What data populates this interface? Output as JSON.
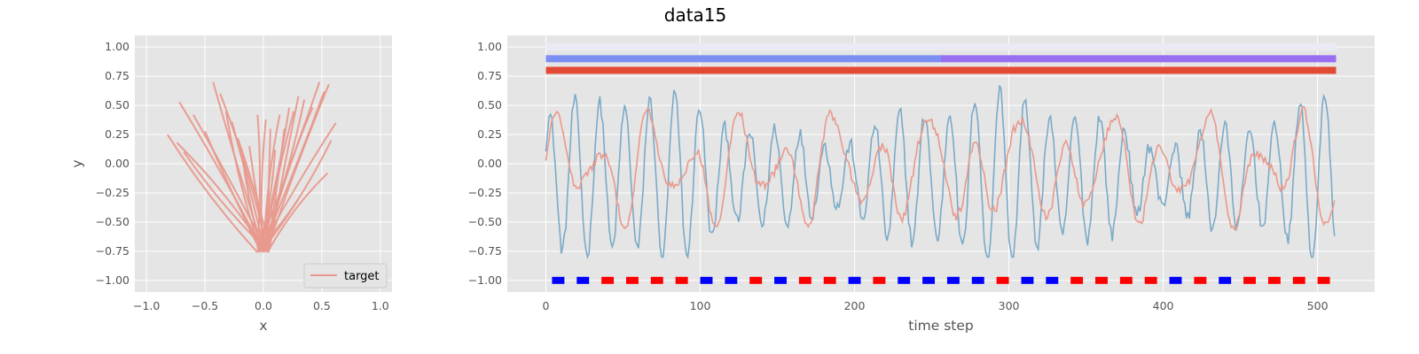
{
  "figure_title": "data15",
  "chart_data": [
    {
      "type": "line",
      "xlabel": "x",
      "ylabel": "y",
      "xlim": [
        -1.1,
        1.1
      ],
      "ylim": [
        -1.1,
        1.1
      ],
      "xticks": [
        -1.0,
        -0.5,
        0.0,
        0.5,
        1.0
      ],
      "yticks": [
        -1.0,
        -0.75,
        -0.5,
        -0.25,
        0.0,
        0.25,
        0.5,
        0.75,
        1.0
      ],
      "xtick_labels": [
        "−1.0",
        "−0.5",
        "0.0",
        "0.5",
        "1.0"
      ],
      "ytick_labels": [
        "−1.00",
        "−0.75",
        "−0.50",
        "−0.25",
        "0.00",
        "0.25",
        "0.50",
        "0.75",
        "1.00"
      ],
      "grid": true,
      "legend": {
        "placement": "lower-right",
        "entries": [
          {
            "label": "target",
            "color": "#e8998d"
          }
        ]
      },
      "series": [
        {
          "name": "target",
          "color": "#e8998d",
          "style": "strokes radiating from near (0, -0.75)",
          "endpoints": [
            [
              -0.82,
              0.25
            ],
            [
              -0.72,
              0.53
            ],
            [
              -0.6,
              0.42
            ],
            [
              -0.5,
              0.28
            ],
            [
              -0.43,
              0.7
            ],
            [
              -0.37,
              0.6
            ],
            [
              -0.32,
              0.45
            ],
            [
              -0.27,
              0.36
            ],
            [
              -0.22,
              0.22
            ],
            [
              -0.18,
              0.08
            ],
            [
              -0.12,
              0.15
            ],
            [
              -0.05,
              0.42
            ],
            [
              0.02,
              0.38
            ],
            [
              0.06,
              0.3
            ],
            [
              0.1,
              0.12
            ],
            [
              0.14,
              0.42
            ],
            [
              0.18,
              0.3
            ],
            [
              0.22,
              0.48
            ],
            [
              0.26,
              0.45
            ],
            [
              0.3,
              0.58
            ],
            [
              0.35,
              0.55
            ],
            [
              0.42,
              0.48
            ],
            [
              0.48,
              0.7
            ],
            [
              0.52,
              0.62
            ],
            [
              0.56,
              0.68
            ],
            [
              0.62,
              0.35
            ],
            [
              0.58,
              0.2
            ],
            [
              0.55,
              -0.08
            ],
            [
              0.3,
              -0.3
            ],
            [
              -0.74,
              0.18
            ],
            [
              -0.68,
              0.1
            ]
          ]
        }
      ]
    },
    {
      "type": "line",
      "xlabel": "time step",
      "ylabel": "",
      "xlim": [
        -25,
        537
      ],
      "ylim": [
        -1.1,
        1.1
      ],
      "xticks": [
        0,
        100,
        200,
        300,
        400,
        500
      ],
      "yticks": [
        -1.0,
        -0.75,
        -0.5,
        -0.25,
        0.0,
        0.25,
        0.5,
        0.75,
        1.0
      ],
      "xtick_labels": [
        "0",
        "100",
        "200",
        "300",
        "400",
        "500"
      ],
      "ytick_labels": [
        "−1.00",
        "−0.75",
        "−0.50",
        "−0.25",
        "0.00",
        "0.25",
        "0.50",
        "0.75",
        "1.00"
      ],
      "grid": true,
      "bands": [
        {
          "y": 1.0,
          "x": [
            0,
            512
          ],
          "segments": [
            {
              "x": [
                0,
                512
              ],
              "color": "#eaeaf5"
            }
          ]
        },
        {
          "y": 0.9,
          "x": [
            0,
            512
          ],
          "segments": [
            {
              "x": [
                0,
                256
              ],
              "color": "#7b8ff2"
            },
            {
              "x": [
                256,
                512
              ],
              "color": "#9a6ef0"
            }
          ]
        },
        {
          "y": 0.8,
          "x": [
            0,
            512
          ],
          "segments": [
            {
              "x": [
                0,
                512
              ],
              "color": "#e24a33"
            }
          ]
        }
      ],
      "blue_series": {
        "color": "#7aaac8",
        "x_start": 0,
        "x_end": 511,
        "description": "oscillation roughly 16-step period, amplitude about 0.5–0.7, range approx -0.8 to 0.7"
      },
      "red_series": {
        "color": "#e8998d",
        "x_start": 0,
        "x_end": 511,
        "description": "smoother oscillation, range approx -0.82 to 0.63"
      },
      "markers": {
        "y": -1.0,
        "x": [
          8,
          24,
          40,
          56,
          72,
          88,
          104,
          120,
          136,
          152,
          168,
          184,
          200,
          216,
          232,
          248,
          264,
          280,
          296,
          312,
          328,
          344,
          360,
          376,
          392,
          408,
          424,
          440,
          456,
          472,
          488,
          504
        ],
        "colors": [
          "blue",
          "blue",
          "red",
          "red",
          "red",
          "red",
          "blue",
          "blue",
          "red",
          "blue",
          "red",
          "red",
          "blue",
          "red",
          "blue",
          "blue",
          "blue",
          "blue",
          "red",
          "blue",
          "blue",
          "red",
          "red",
          "red",
          "red",
          "blue",
          "red",
          "blue",
          "red",
          "red",
          "red",
          "red"
        ]
      }
    }
  ]
}
